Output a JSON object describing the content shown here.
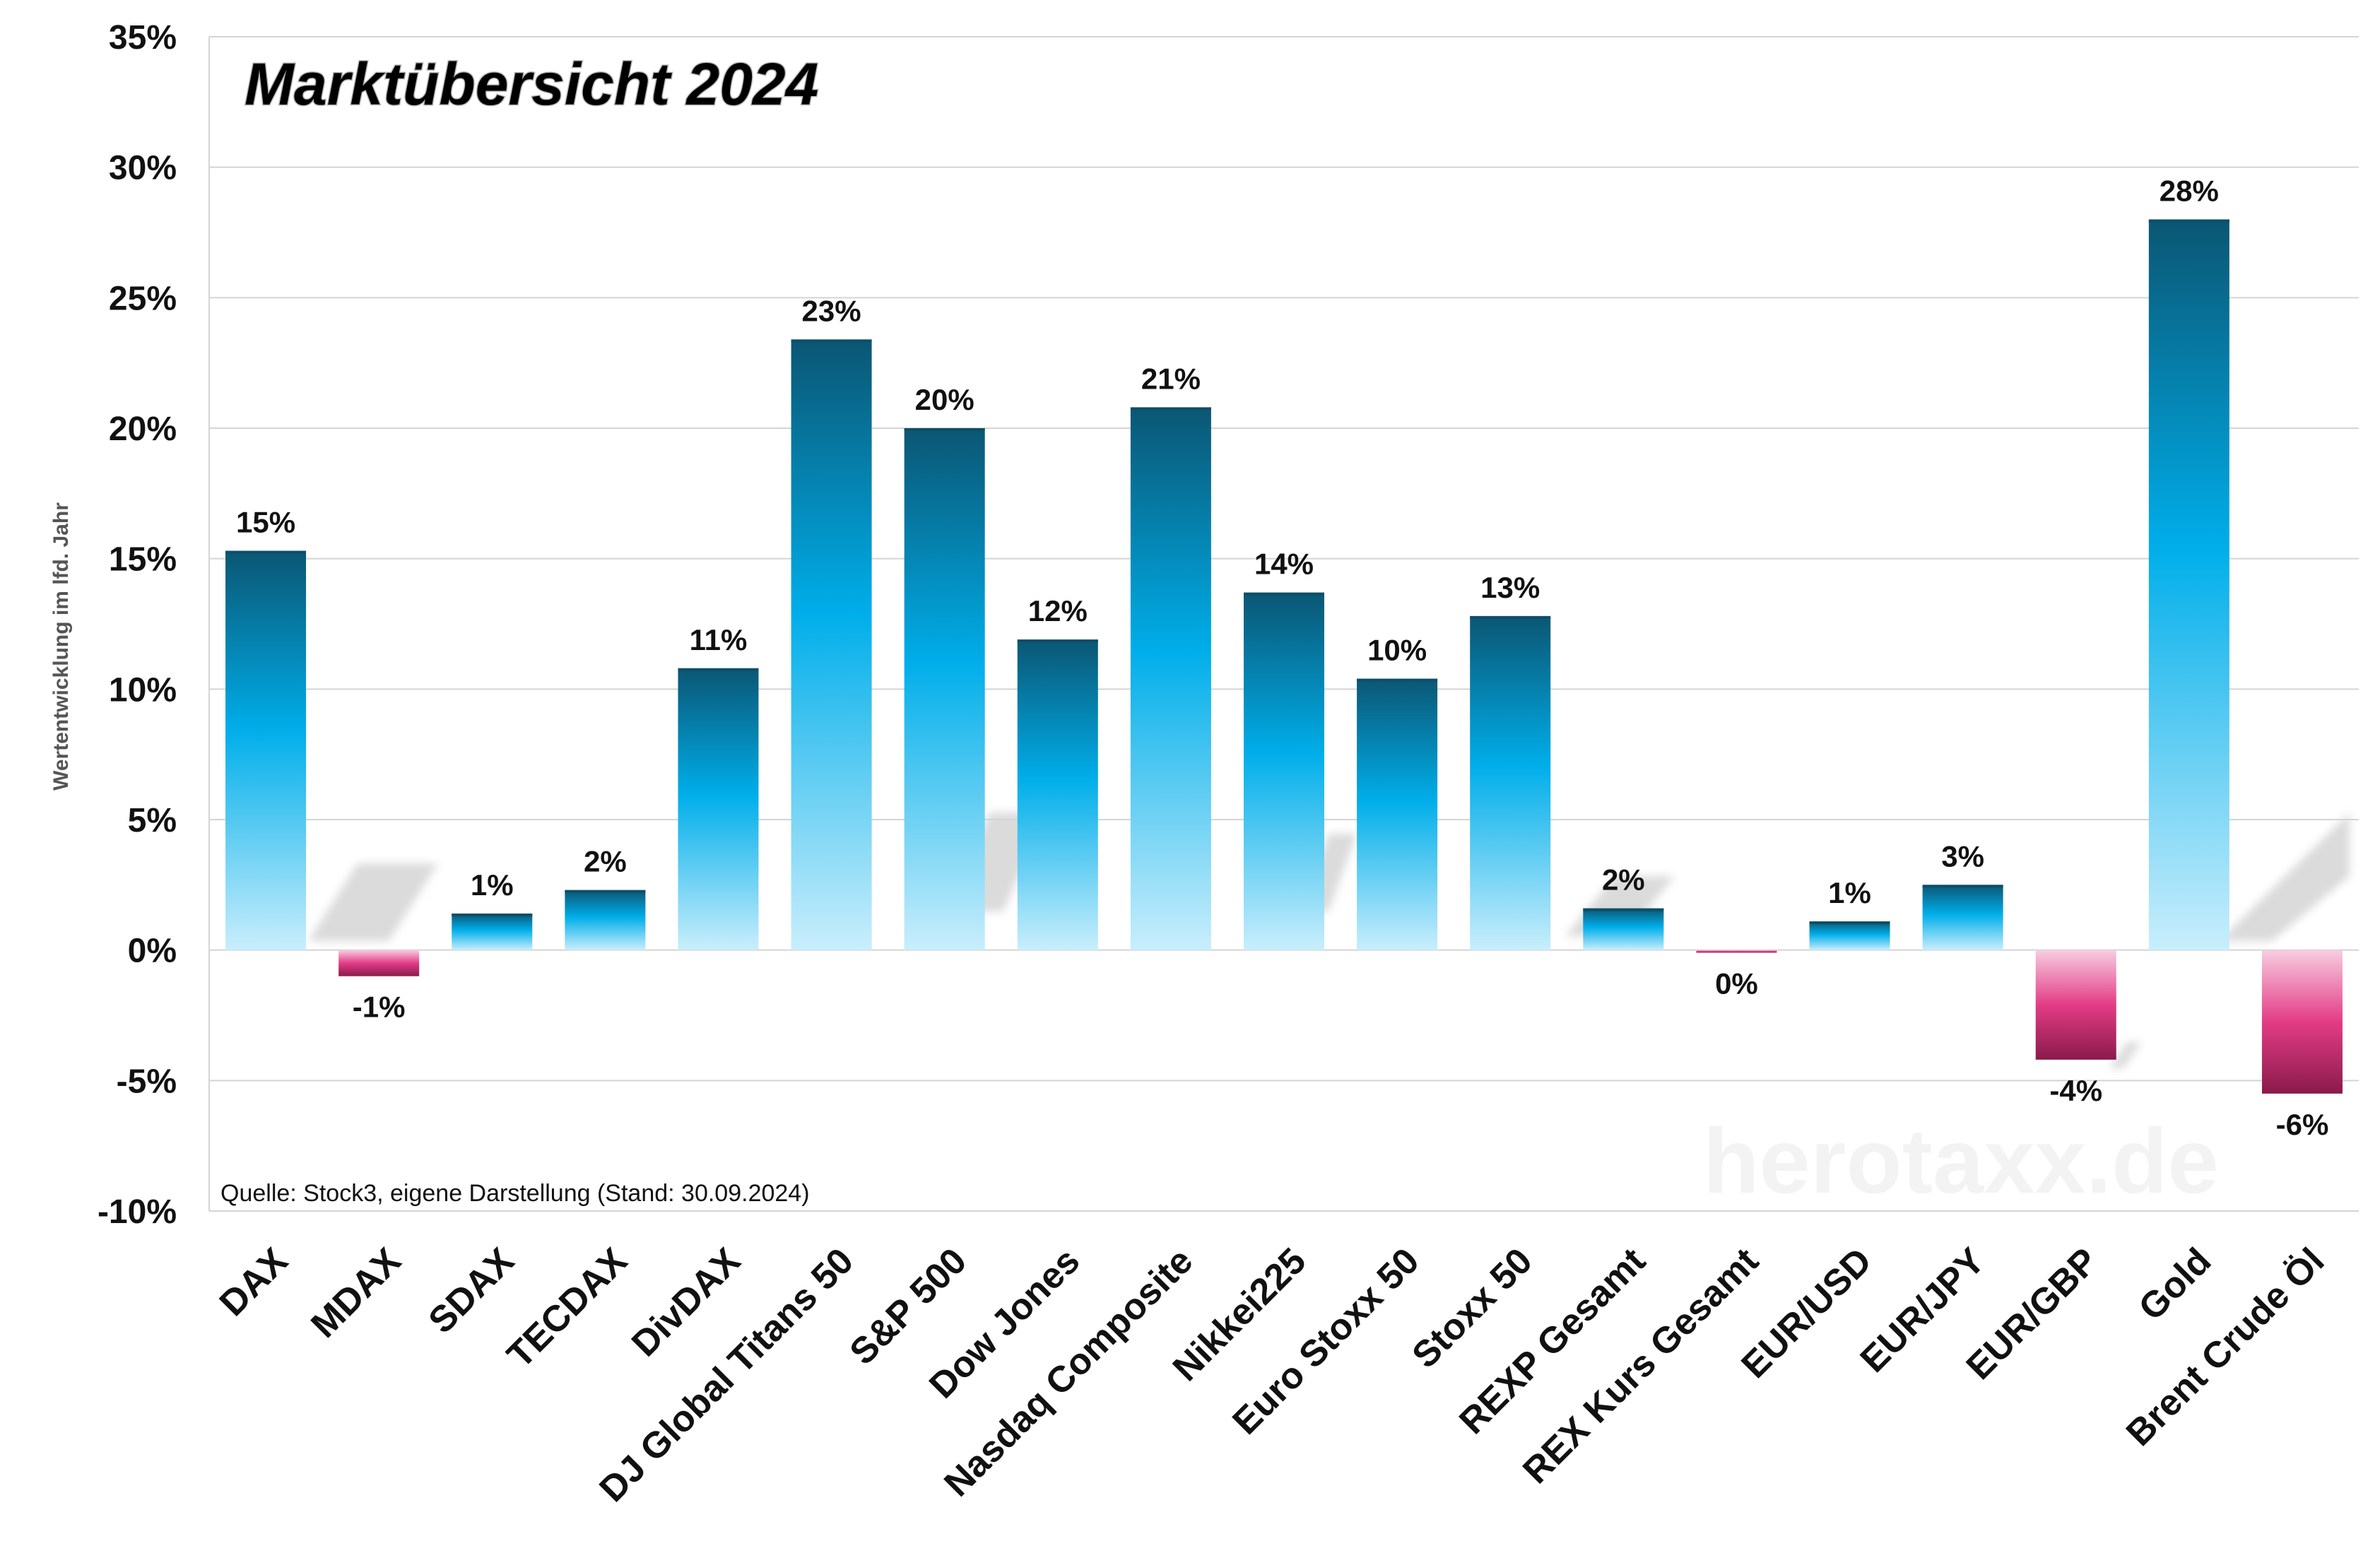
{
  "chart_data": {
    "type": "bar",
    "title": "Marktübersicht 2024",
    "ylabel": "Wertentwicklung  im lfd. Jahr",
    "source": "Quelle: Stock3, eigene Darstellung (Stand: 30.09.2024)",
    "watermark": "herotaxx.de",
    "ylim": [
      -10,
      35
    ],
    "yticks": [
      35,
      30,
      25,
      20,
      15,
      10,
      5,
      0,
      -5,
      -10
    ],
    "ytick_labels": [
      "35%",
      "30%",
      "25%",
      "20%",
      "15%",
      "10%",
      "5%",
      "0%",
      "-5%",
      "-10%"
    ],
    "grid": true,
    "categories": [
      "DAX",
      "MDAX",
      "SDAX",
      "TECDAX",
      "DivDAX",
      "DJ Global Titans 50",
      "S&P 500",
      "Dow Jones",
      "Nasdaq Composite",
      "Nikkei225",
      "Euro Stoxx 50",
      "Stoxx 50",
      "REXP Gesamt",
      "REX Kurs Gesamt",
      "EUR/USD",
      "EUR/JPY",
      "EUR/GBP",
      "Gold",
      "Brent Crude Öl"
    ],
    "values": [
      15.3,
      -1.0,
      1.4,
      2.3,
      10.8,
      23.4,
      20.0,
      11.9,
      20.8,
      13.7,
      10.4,
      12.8,
      1.6,
      -0.1,
      1.1,
      2.5,
      -4.2,
      28.0,
      -5.5
    ],
    "data_labels": [
      "15%",
      "-1%",
      "1%",
      "2%",
      "11%",
      "23%",
      "20%",
      "12%",
      "21%",
      "14%",
      "10%",
      "13%",
      "2%",
      "0%",
      "1%",
      "3%",
      "-4%",
      "28%",
      "-6%"
    ],
    "colors": {
      "positive_top": "#0b5673",
      "positive_mid": "#00aeea",
      "positive_bottom": "#c9eefc",
      "negative_top": "#f7cde0",
      "negative_mid": "#e33c86",
      "negative_bottom": "#8a1a4a",
      "grid": "#d4d4d4"
    }
  }
}
